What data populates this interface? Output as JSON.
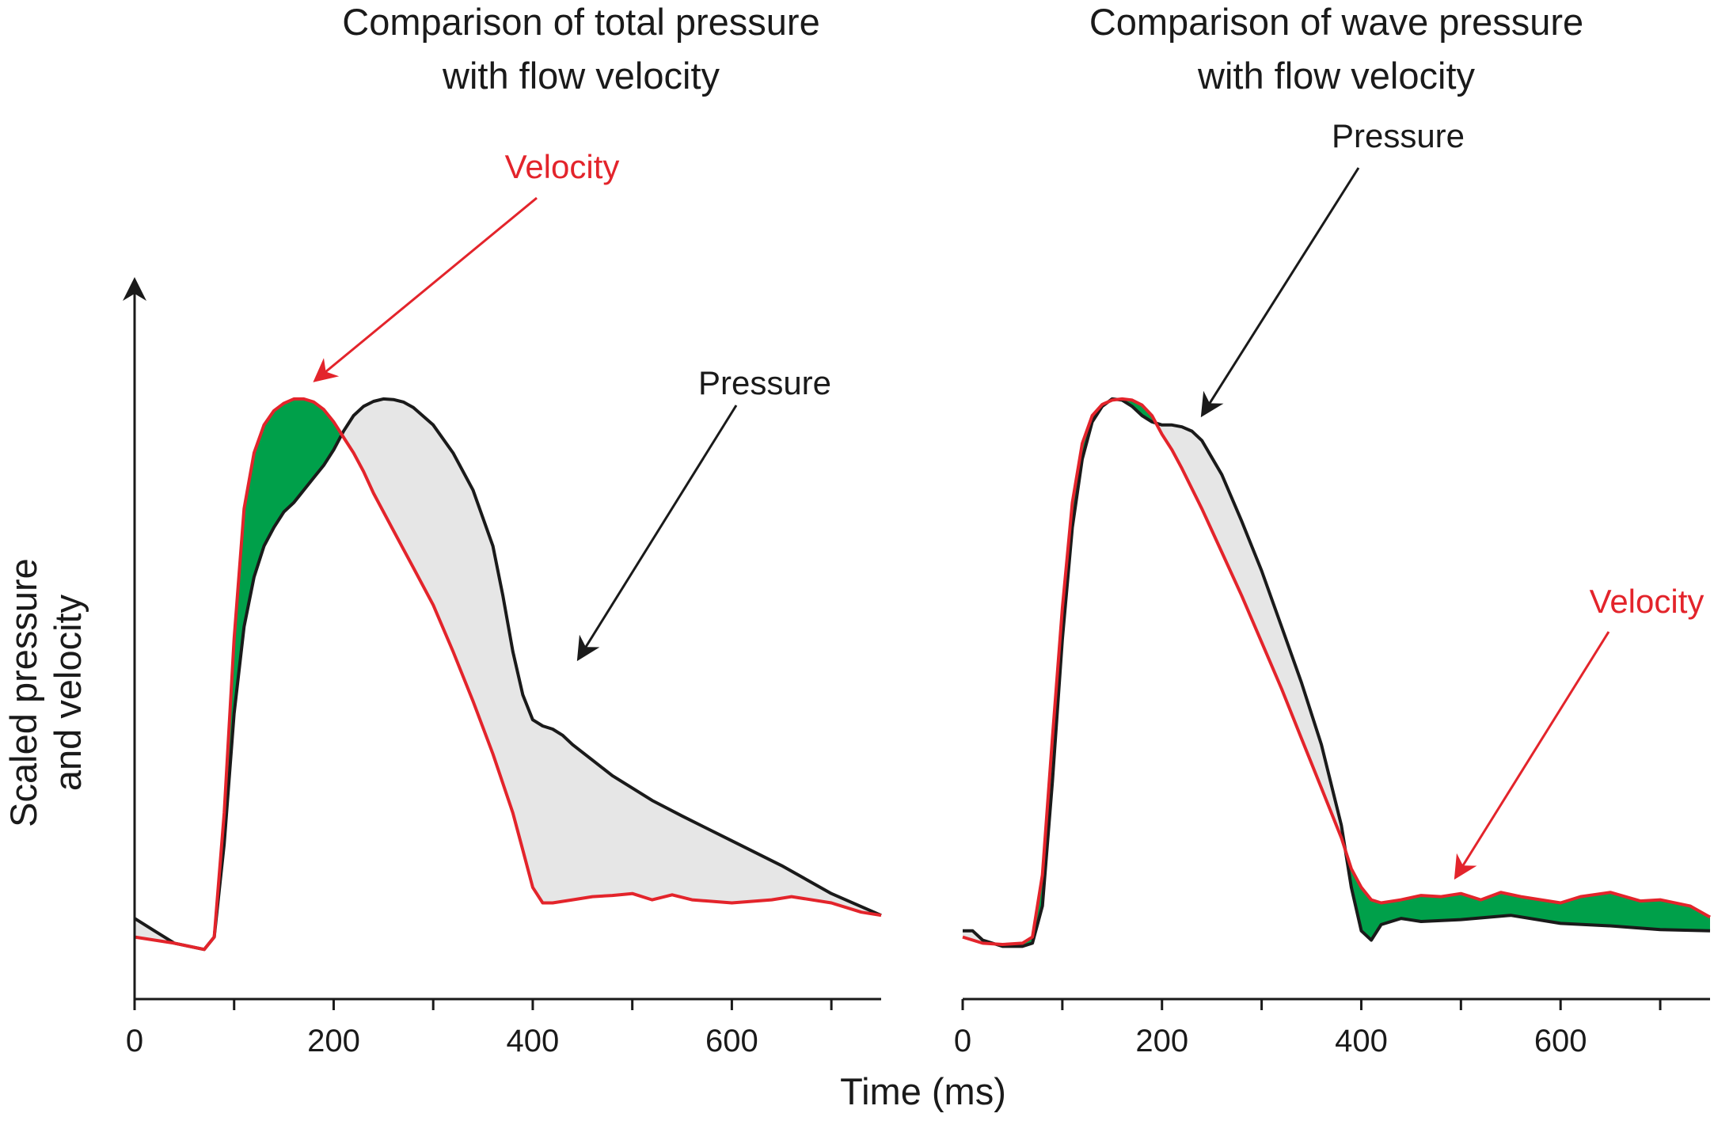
{
  "colors": {
    "pressure": "#1a1a1a",
    "velocity": "#e3242b",
    "velocity_excess_fill": "#00a04a",
    "pressure_excess_fill": "#e6e6e6",
    "axis": "#1a1a1a"
  },
  "figure": {
    "ylabel_line1": "Scaled pressure",
    "ylabel_line2": "and velocity",
    "xlabel": "Time (ms)"
  },
  "chart_data": [
    {
      "type": "line",
      "title_line1": "Comparison of total pressure",
      "title_line2": "with flow velocity",
      "xlim": [
        0,
        750
      ],
      "ylim": [
        0,
        1
      ],
      "x_ticks": [
        0,
        200,
        400,
        600
      ],
      "x_minor_ticks": [
        100,
        300,
        500,
        700
      ],
      "grid": false,
      "y_axis_arrow": true,
      "y_tick_labels": false,
      "annotations": [
        {
          "text": "Velocity",
          "series": "velocity"
        },
        {
          "text": "Pressure",
          "series": "pressure"
        }
      ],
      "series": [
        {
          "name": "Pressure",
          "key": "pressure",
          "x": [
            0,
            20,
            40,
            70,
            80,
            90,
            100,
            110,
            120,
            130,
            140,
            150,
            160,
            170,
            180,
            190,
            200,
            210,
            220,
            230,
            240,
            250,
            260,
            270,
            280,
            300,
            320,
            340,
            360,
            370,
            380,
            390,
            400,
            410,
            420,
            430,
            440,
            460,
            480,
            500,
            520,
            550,
            600,
            650,
            700,
            750
          ],
          "y": [
            0.13,
            0.11,
            0.09,
            0.08,
            0.1,
            0.25,
            0.46,
            0.6,
            0.68,
            0.73,
            0.76,
            0.785,
            0.8,
            0.82,
            0.84,
            0.86,
            0.885,
            0.915,
            0.94,
            0.955,
            0.963,
            0.967,
            0.966,
            0.962,
            0.953,
            0.925,
            0.88,
            0.82,
            0.73,
            0.65,
            0.56,
            0.49,
            0.45,
            0.44,
            0.435,
            0.425,
            0.41,
            0.385,
            0.36,
            0.34,
            0.32,
            0.295,
            0.255,
            0.215,
            0.17,
            0.135
          ]
        },
        {
          "name": "Velocity",
          "key": "velocity",
          "x": [
            0,
            20,
            40,
            70,
            80,
            90,
            100,
            110,
            120,
            130,
            140,
            150,
            160,
            170,
            180,
            190,
            200,
            210,
            220,
            230,
            240,
            260,
            280,
            300,
            320,
            340,
            360,
            380,
            390,
            400,
            410,
            420,
            440,
            460,
            480,
            500,
            520,
            540,
            560,
            600,
            640,
            660,
            700,
            730,
            750
          ],
          "y": [
            0.1,
            0.095,
            0.09,
            0.08,
            0.1,
            0.3,
            0.58,
            0.79,
            0.88,
            0.925,
            0.948,
            0.96,
            0.967,
            0.967,
            0.962,
            0.95,
            0.93,
            0.905,
            0.88,
            0.85,
            0.815,
            0.755,
            0.695,
            0.635,
            0.56,
            0.48,
            0.395,
            0.3,
            0.24,
            0.18,
            0.155,
            0.155,
            0.16,
            0.165,
            0.167,
            0.17,
            0.16,
            0.168,
            0.16,
            0.155,
            0.16,
            0.165,
            0.155,
            0.14,
            0.135
          ]
        }
      ]
    },
    {
      "type": "line",
      "title_line1": "Comparison of wave pressure",
      "title_line2": "with flow velocity",
      "xlim": [
        0,
        750
      ],
      "ylim": [
        0,
        1
      ],
      "x_ticks": [
        0,
        200,
        400,
        600
      ],
      "x_minor_ticks": [
        100,
        300,
        500,
        700
      ],
      "grid": false,
      "y_axis_arrow": false,
      "y_tick_labels": false,
      "annotations": [
        {
          "text": "Pressure",
          "series": "pressure"
        },
        {
          "text": "Velocity",
          "series": "velocity"
        }
      ],
      "series": [
        {
          "name": "Pressure",
          "key": "pressure",
          "x": [
            0,
            10,
            20,
            40,
            60,
            70,
            80,
            90,
            100,
            110,
            120,
            130,
            140,
            150,
            160,
            170,
            180,
            190,
            200,
            210,
            220,
            230,
            240,
            260,
            280,
            300,
            320,
            340,
            360,
            380,
            390,
            400,
            410,
            420,
            440,
            460,
            500,
            550,
            600,
            650,
            700,
            750
          ],
          "y": [
            0.11,
            0.11,
            0.095,
            0.085,
            0.085,
            0.09,
            0.15,
            0.35,
            0.58,
            0.76,
            0.87,
            0.93,
            0.955,
            0.967,
            0.965,
            0.955,
            0.94,
            0.93,
            0.925,
            0.925,
            0.922,
            0.915,
            0.9,
            0.845,
            0.77,
            0.69,
            0.6,
            0.51,
            0.41,
            0.28,
            0.18,
            0.11,
            0.095,
            0.12,
            0.13,
            0.125,
            0.128,
            0.135,
            0.122,
            0.118,
            0.112,
            0.11
          ]
        },
        {
          "name": "Velocity",
          "key": "velocity",
          "x": [
            0,
            10,
            20,
            40,
            60,
            70,
            80,
            90,
            100,
            110,
            120,
            130,
            140,
            150,
            160,
            170,
            180,
            190,
            200,
            210,
            220,
            240,
            260,
            280,
            300,
            320,
            340,
            360,
            380,
            390,
            400,
            410,
            420,
            440,
            460,
            480,
            500,
            520,
            540,
            560,
            600,
            620,
            650,
            680,
            700,
            730,
            750
          ],
          "y": [
            0.1,
            0.095,
            0.09,
            0.088,
            0.09,
            0.1,
            0.2,
            0.42,
            0.63,
            0.8,
            0.895,
            0.94,
            0.958,
            0.965,
            0.967,
            0.965,
            0.957,
            0.94,
            0.91,
            0.885,
            0.855,
            0.79,
            0.72,
            0.65,
            0.575,
            0.5,
            0.42,
            0.34,
            0.26,
            0.21,
            0.18,
            0.16,
            0.155,
            0.16,
            0.167,
            0.165,
            0.17,
            0.16,
            0.172,
            0.165,
            0.155,
            0.165,
            0.172,
            0.158,
            0.16,
            0.15,
            0.132
          ]
        }
      ]
    }
  ]
}
